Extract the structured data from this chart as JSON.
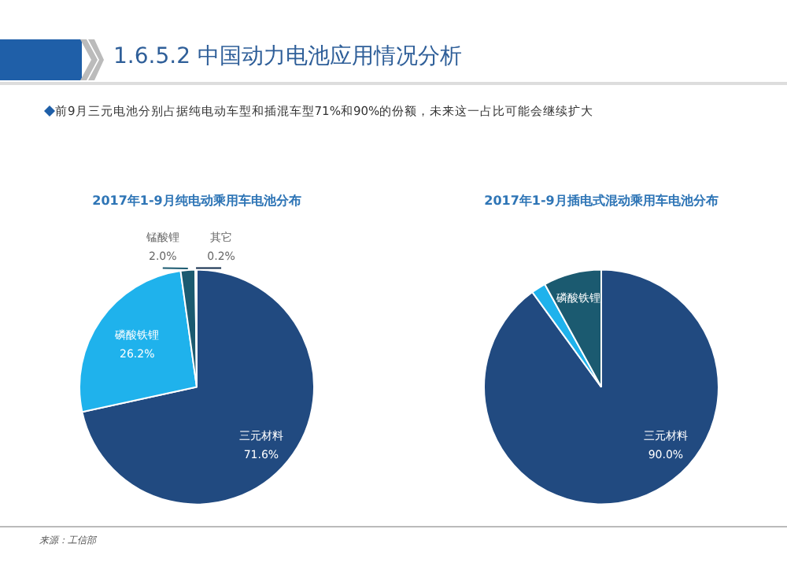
{
  "chart_data": [
    {
      "type": "other",
      "title": "1.6.5.2 中国动力电池应用情况分析",
      "annotations": [
        "前9月三元电池分别占据纯电动车型和插混车型71%和90%的份额，未来这一占比可能会继续扩大",
        "来源：工信部"
      ]
    },
    {
      "type": "pie",
      "title": "2017年1-9月纯电动乘用车电池分布",
      "categories": [
        "三元材料",
        "磷酸铁锂",
        "锰酸锂",
        "其它"
      ],
      "values": [
        71.6,
        26.2,
        2.0,
        0.2
      ],
      "colors": [
        "#214a80",
        "#1fb2ec",
        "#1b5a70",
        "#0f2a4a"
      ],
      "value_labels": [
        "71.6%",
        "26.2%",
        "2.0%",
        "0.2%"
      ]
    },
    {
      "type": "pie",
      "title": "2017年1-9月插电式混动乘用车电池分布",
      "categories": [
        "三元材料",
        null,
        "磷酸铁锂"
      ],
      "values": [
        90.0,
        2.0,
        8.0
      ],
      "colors": [
        "#214a80",
        "#1fb2ec",
        "#1b5a70"
      ],
      "value_labels": [
        "90.0%",
        null,
        null
      ]
    }
  ]
}
